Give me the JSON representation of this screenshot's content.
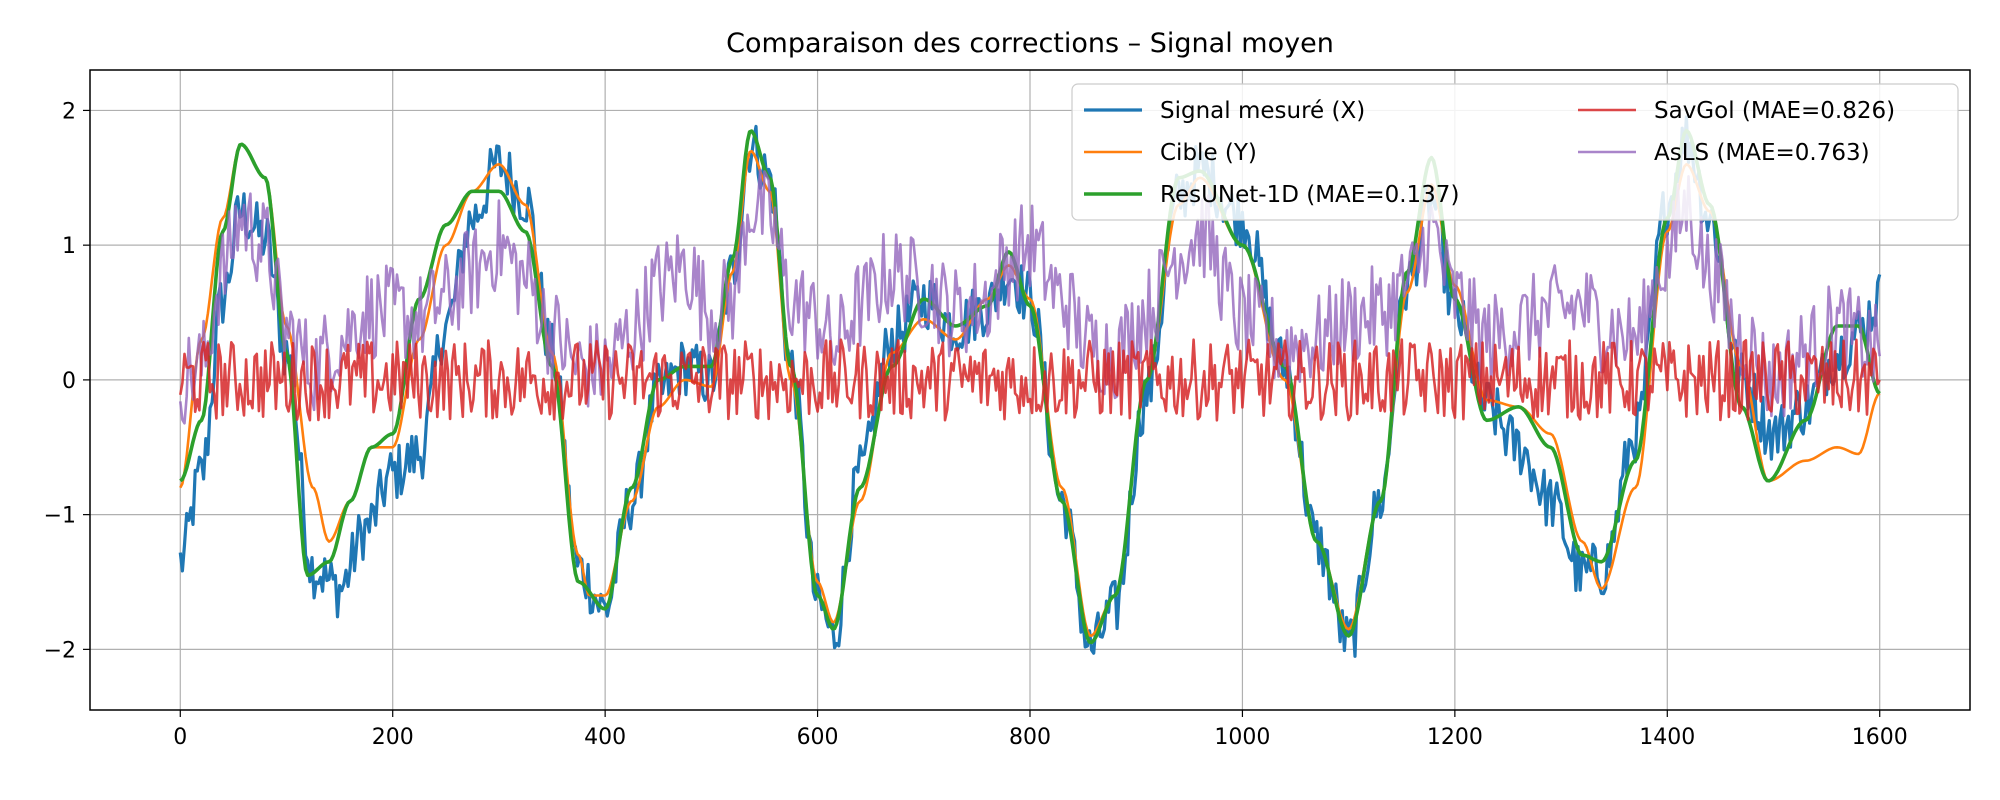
{
  "chart_data": {
    "type": "line",
    "title": "Comparaison des corrections – Signal moyen",
    "xlabel": "",
    "ylabel": "",
    "xlim": [
      -85,
      1685
    ],
    "ylim": [
      -2.45,
      2.3
    ],
    "x_ticks": [
      0,
      200,
      400,
      600,
      800,
      1000,
      1200,
      1400,
      1600
    ],
    "y_ticks": [
      -2,
      -1,
      0,
      1,
      2
    ],
    "y_tick_labels": [
      "−2",
      "−1",
      "0",
      "1",
      "2"
    ],
    "grid": true,
    "legend_position": "top-right",
    "legend_columns": 2,
    "series": [
      {
        "name": "Signal mesuré (X)",
        "color": "#1f77b4",
        "x": [
          0,
          20,
          40,
          57,
          80,
          100,
          125,
          150,
          175,
          200,
          225,
          250,
          275,
          300,
          325,
          350,
          375,
          400,
          425,
          450,
          475,
          500,
          520,
          537,
          555,
          575,
          600,
          615,
          640,
          670,
          700,
          730,
          760,
          780,
          800,
          830,
          857,
          880,
          910,
          940,
          960,
          1000,
          1040,
          1070,
          1100,
          1130,
          1155,
          1178,
          1200,
          1230,
          1260,
          1290,
          1320,
          1340,
          1370,
          1400,
          1418,
          1440,
          1470,
          1500,
          1530,
          1560,
          1580,
          1600
        ],
        "y": [
          -1.35,
          -0.7,
          0.6,
          1.25,
          1.05,
          0.2,
          -1.4,
          -1.55,
          -1.1,
          -0.7,
          -0.55,
          0.4,
          1.2,
          1.6,
          1.35,
          0.2,
          -1.4,
          -1.7,
          -0.9,
          -0.1,
          0.1,
          0.0,
          0.8,
          1.75,
          1.5,
          0.1,
          -1.65,
          -1.9,
          -0.7,
          0.3,
          0.6,
          0.4,
          0.55,
          0.8,
          0.6,
          -0.9,
          -2.0,
          -1.7,
          -0.1,
          1.35,
          1.55,
          1.2,
          0.1,
          -1.2,
          -1.95,
          -0.9,
          0.7,
          1.35,
          0.5,
          -0.2,
          -0.5,
          -0.9,
          -1.45,
          -1.4,
          -0.4,
          1.3,
          1.8,
          1.2,
          0.0,
          -0.4,
          -0.2,
          0.2,
          0.35,
          0.6
        ]
      },
      {
        "name": "Cible (Y)",
        "color": "#ff7f0e",
        "x": [
          0,
          20,
          40,
          57,
          80,
          100,
          125,
          140,
          160,
          180,
          200,
          225,
          250,
          275,
          300,
          325,
          350,
          375,
          385,
          400,
          425,
          450,
          475,
          500,
          520,
          537,
          555,
          575,
          600,
          615,
          640,
          670,
          700,
          730,
          760,
          780,
          800,
          830,
          857,
          880,
          910,
          940,
          960,
          1000,
          1040,
          1070,
          1100,
          1130,
          1155,
          1178,
          1200,
          1230,
          1260,
          1290,
          1320,
          1338,
          1370,
          1400,
          1418,
          1440,
          1470,
          1495,
          1530,
          1560,
          1580,
          1600
        ],
        "y": [
          -0.8,
          0.3,
          1.2,
          1.75,
          1.5,
          0.4,
          -0.8,
          -1.2,
          -0.9,
          -0.5,
          -0.5,
          0.3,
          1.0,
          1.4,
          1.6,
          1.3,
          0.2,
          -1.3,
          -1.6,
          -1.6,
          -0.9,
          -0.2,
          0.0,
          -0.05,
          0.8,
          1.7,
          1.4,
          0.0,
          -1.5,
          -1.8,
          -0.9,
          0.2,
          0.45,
          0.3,
          0.6,
          0.85,
          0.6,
          -0.8,
          -1.9,
          -1.6,
          0.0,
          1.3,
          1.5,
          1.0,
          0.0,
          -1.2,
          -1.85,
          -0.9,
          0.65,
          1.45,
          0.7,
          -0.15,
          -0.2,
          -0.4,
          -1.2,
          -1.55,
          -0.8,
          1.1,
          1.6,
          1.25,
          0.1,
          -0.75,
          -0.6,
          -0.5,
          -0.55,
          -0.1
        ]
      },
      {
        "name": "ResUNet-1D (MAE=0.137)",
        "color": "#2ca02c",
        "x": [
          0,
          20,
          40,
          57,
          80,
          100,
          120,
          140,
          160,
          180,
          200,
          225,
          250,
          275,
          300,
          325,
          350,
          375,
          400,
          425,
          450,
          475,
          500,
          520,
          537,
          555,
          575,
          600,
          615,
          640,
          670,
          700,
          730,
          760,
          780,
          800,
          830,
          857,
          880,
          910,
          940,
          960,
          1000,
          1040,
          1070,
          1100,
          1130,
          1155,
          1178,
          1200,
          1230,
          1260,
          1290,
          1320,
          1338,
          1370,
          1400,
          1418,
          1440,
          1470,
          1495,
          1530,
          1560,
          1580,
          1600
        ],
        "y": [
          -0.75,
          -0.3,
          1.1,
          1.75,
          1.5,
          0.2,
          -1.45,
          -1.35,
          -0.9,
          -0.5,
          -0.4,
          0.6,
          1.15,
          1.4,
          1.4,
          1.1,
          0.1,
          -1.5,
          -1.7,
          -0.8,
          0.0,
          0.1,
          0.1,
          0.9,
          1.85,
          1.5,
          0.1,
          -1.6,
          -1.85,
          -0.8,
          0.1,
          0.6,
          0.4,
          0.55,
          0.95,
          0.55,
          -0.9,
          -1.95,
          -1.6,
          0.0,
          1.5,
          1.55,
          1.0,
          0.1,
          -1.2,
          -1.9,
          -0.9,
          0.8,
          1.65,
          0.6,
          -0.3,
          -0.2,
          -0.5,
          -1.3,
          -1.35,
          -0.6,
          1.2,
          1.85,
          1.3,
          -0.2,
          -0.75,
          -0.3,
          0.4,
          0.4,
          -0.1
        ]
      },
      {
        "name": "SavGol (MAE=0.826)",
        "color": "#d62728",
        "x": [
          0,
          1600
        ],
        "y": [
          0.0,
          0.0
        ]
      },
      {
        "name": "AsLS (MAE=0.763)",
        "color": "#9467bd",
        "x": [
          0,
          20,
          40,
          57,
          80,
          100,
          125,
          150,
          175,
          200,
          225,
          250,
          275,
          300,
          325,
          350,
          375,
          400,
          425,
          450,
          475,
          500,
          520,
          537,
          555,
          575,
          600,
          615,
          640,
          670,
          700,
          730,
          760,
          780,
          800,
          830,
          857,
          880,
          910,
          940,
          960,
          1000,
          1040,
          1070,
          1100,
          1130,
          1155,
          1178,
          1200,
          1230,
          1260,
          1290,
          1320,
          1340,
          1370,
          1400,
          1418,
          1440,
          1470,
          1500,
          1530,
          1560,
          1580,
          1600
        ],
        "y": [
          0.0,
          0.1,
          0.8,
          1.2,
          1.0,
          0.35,
          0.1,
          0.3,
          0.5,
          0.5,
          0.45,
          0.6,
          0.8,
          1.0,
          0.75,
          0.35,
          0.1,
          0.1,
          0.35,
          0.7,
          0.85,
          0.5,
          0.6,
          1.3,
          1.2,
          0.6,
          0.45,
          0.25,
          0.55,
          0.8,
          0.7,
          0.5,
          0.6,
          0.9,
          1.0,
          0.6,
          0.25,
          0.2,
          0.5,
          0.95,
          1.1,
          0.45,
          0.25,
          0.3,
          0.45,
          0.5,
          0.7,
          1.1,
          0.6,
          0.3,
          0.4,
          0.5,
          0.55,
          0.4,
          0.3,
          0.9,
          1.3,
          0.8,
          0.3,
          0.0,
          0.2,
          0.4,
          0.3,
          0.2
        ]
      }
    ]
  }
}
